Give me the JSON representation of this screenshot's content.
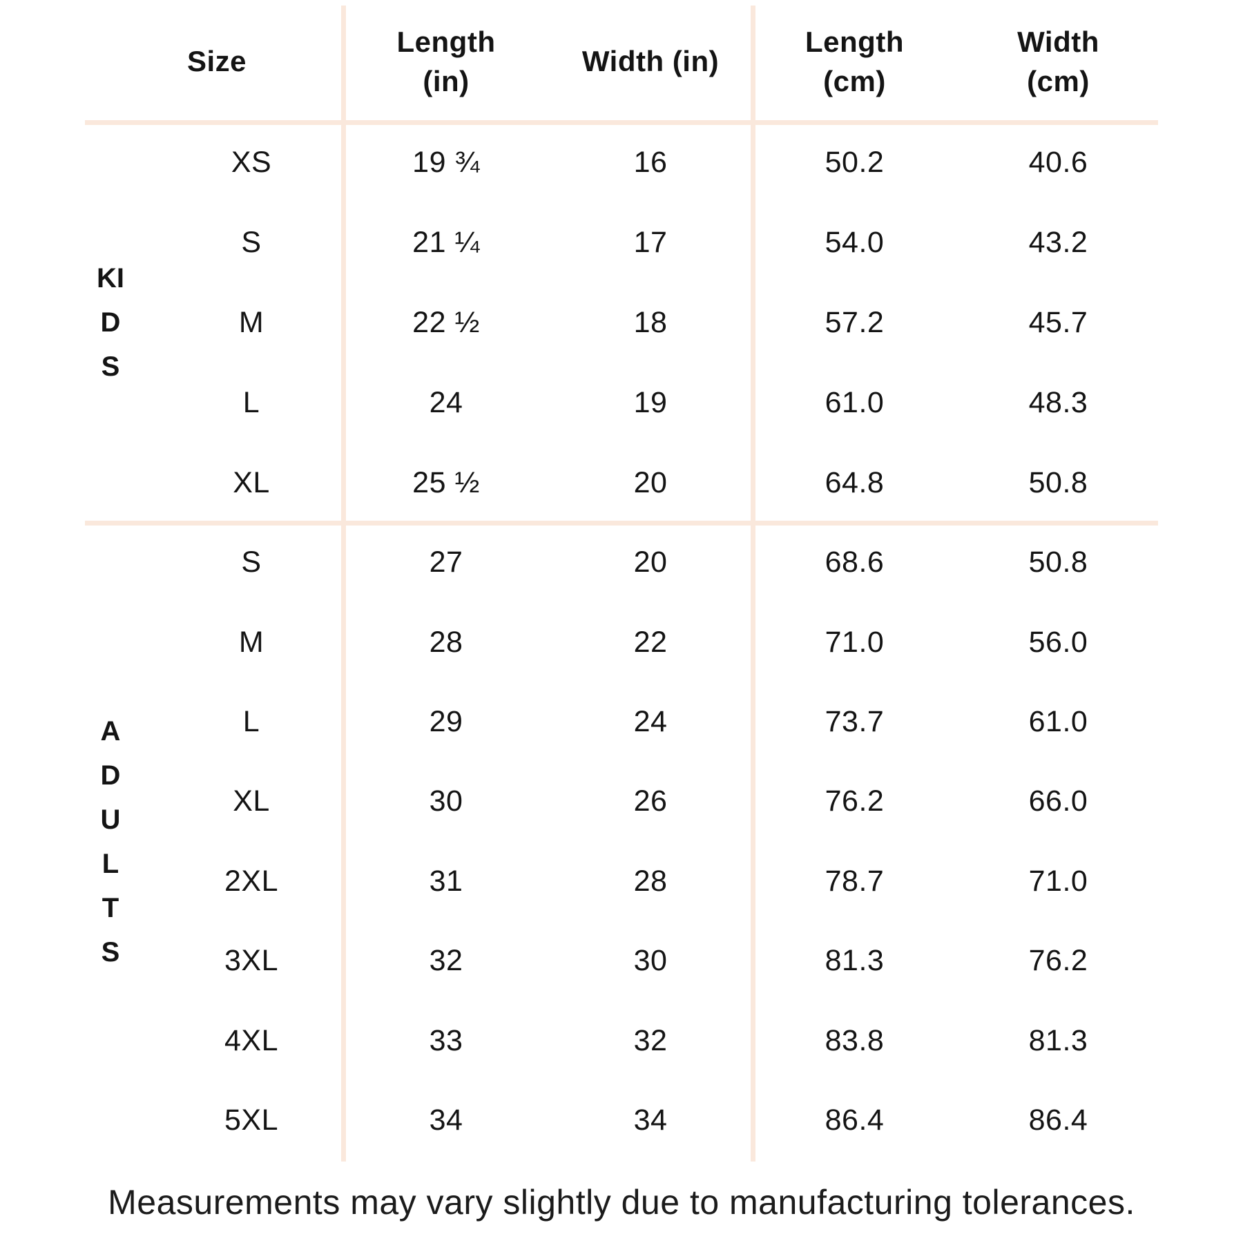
{
  "chart_data": {
    "type": "table",
    "columns": [
      "Size",
      "Length (in)",
      "Width (in)",
      "Length (cm)",
      "Width (cm)"
    ],
    "groups": [
      {
        "name": "KIDS",
        "rows": [
          {
            "size": "XS",
            "length_in": "19 ¾",
            "width_in": "16",
            "length_cm": "50.2",
            "width_cm": "40.6"
          },
          {
            "size": "S",
            "length_in": "21 ¼",
            "width_in": "17",
            "length_cm": "54.0",
            "width_cm": "43.2"
          },
          {
            "size": "M",
            "length_in": "22 ½",
            "width_in": "18",
            "length_cm": "57.2",
            "width_cm": "45.7"
          },
          {
            "size": "L",
            "length_in": "24",
            "width_in": "19",
            "length_cm": "61.0",
            "width_cm": "48.3"
          },
          {
            "size": "XL",
            "length_in": "25 ½",
            "width_in": "20",
            "length_cm": "64.8",
            "width_cm": "50.8"
          }
        ]
      },
      {
        "name": "ADULTS",
        "rows": [
          {
            "size": "S",
            "length_in": "27",
            "width_in": "20",
            "length_cm": "68.6",
            "width_cm": "50.8"
          },
          {
            "size": "M",
            "length_in": "28",
            "width_in": "22",
            "length_cm": "71.0",
            "width_cm": "56.0"
          },
          {
            "size": "L",
            "length_in": "29",
            "width_in": "24",
            "length_cm": "73.7",
            "width_cm": "61.0"
          },
          {
            "size": "XL",
            "length_in": "30",
            "width_in": "26",
            "length_cm": "76.2",
            "width_cm": "66.0"
          },
          {
            "size": "2XL",
            "length_in": "31",
            "width_in": "28",
            "length_cm": "78.7",
            "width_cm": "71.0"
          },
          {
            "size": "3XL",
            "length_in": "32",
            "width_in": "30",
            "length_cm": "81.3",
            "width_cm": "76.2"
          },
          {
            "size": "4XL",
            "length_in": "33",
            "width_in": "32",
            "length_cm": "83.8",
            "width_cm": "81.3"
          },
          {
            "size": "5XL",
            "length_in": "34",
            "width_in": "34",
            "length_cm": "86.4",
            "width_cm": "86.4"
          }
        ]
      }
    ]
  },
  "ui": {
    "headers": {
      "size": "Size",
      "length_in": "Length\n(in)",
      "width_in": "Width (in)",
      "length_cm": "Length\n(cm)",
      "width_cm": "Width\n(cm)"
    },
    "footer": "Measurements may vary slightly due to manufacturing tolerances."
  },
  "colors": {
    "divider": "#FAE8DC",
    "text": "#141414",
    "background": "#FFFFFF"
  }
}
